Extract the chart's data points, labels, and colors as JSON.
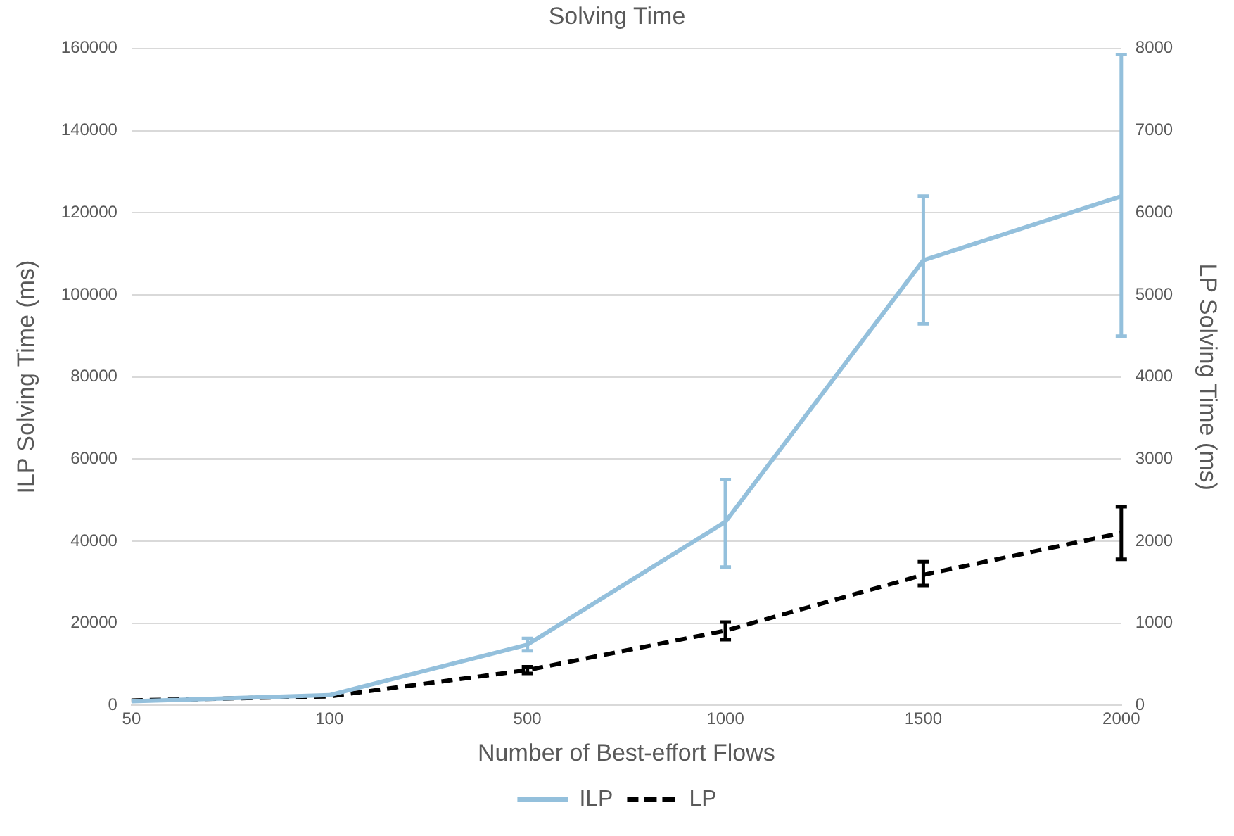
{
  "chart_data": {
    "type": "line",
    "title": "Solving Time",
    "xlabel": "Number of Best-effort Flows",
    "ylabel": "ILP Solving Time (ms)",
    "y2label": "LP Solving Time (ms)",
    "categories": [
      "50",
      "100",
      "500",
      "1000",
      "1500",
      "2000"
    ],
    "series": [
      {
        "name": "ILP",
        "color": "#94c0dc",
        "line_style": "solid",
        "values": [
          1000,
          2500,
          14800,
          44700,
          108400,
          124000
        ],
        "errors": [
          null,
          null,
          1500,
          [
            33700,
            55000
          ],
          [
            92900,
            124000
          ],
          [
            89900,
            158500
          ]
        ]
      },
      {
        "name": "LP",
        "color": "#000000",
        "line_style": "dashed",
        "axis": "y2",
        "values": [
          60,
          110,
          430,
          910,
          1590,
          2100
        ],
        "errors": [
          null,
          null,
          40,
          [
            800,
            1015
          ],
          [
            1460,
            1750
          ],
          [
            1780,
            2420
          ]
        ]
      }
    ],
    "ylim": [
      0,
      160000
    ],
    "yticks": [
      0,
      20000,
      40000,
      60000,
      80000,
      100000,
      120000,
      140000,
      160000
    ],
    "y2lim": [
      0,
      8000
    ],
    "y2ticks": [
      0,
      1000,
      2000,
      3000,
      4000,
      5000,
      6000,
      7000,
      8000
    ],
    "grid": "y",
    "legend": "bottom",
    "marker": "none"
  }
}
